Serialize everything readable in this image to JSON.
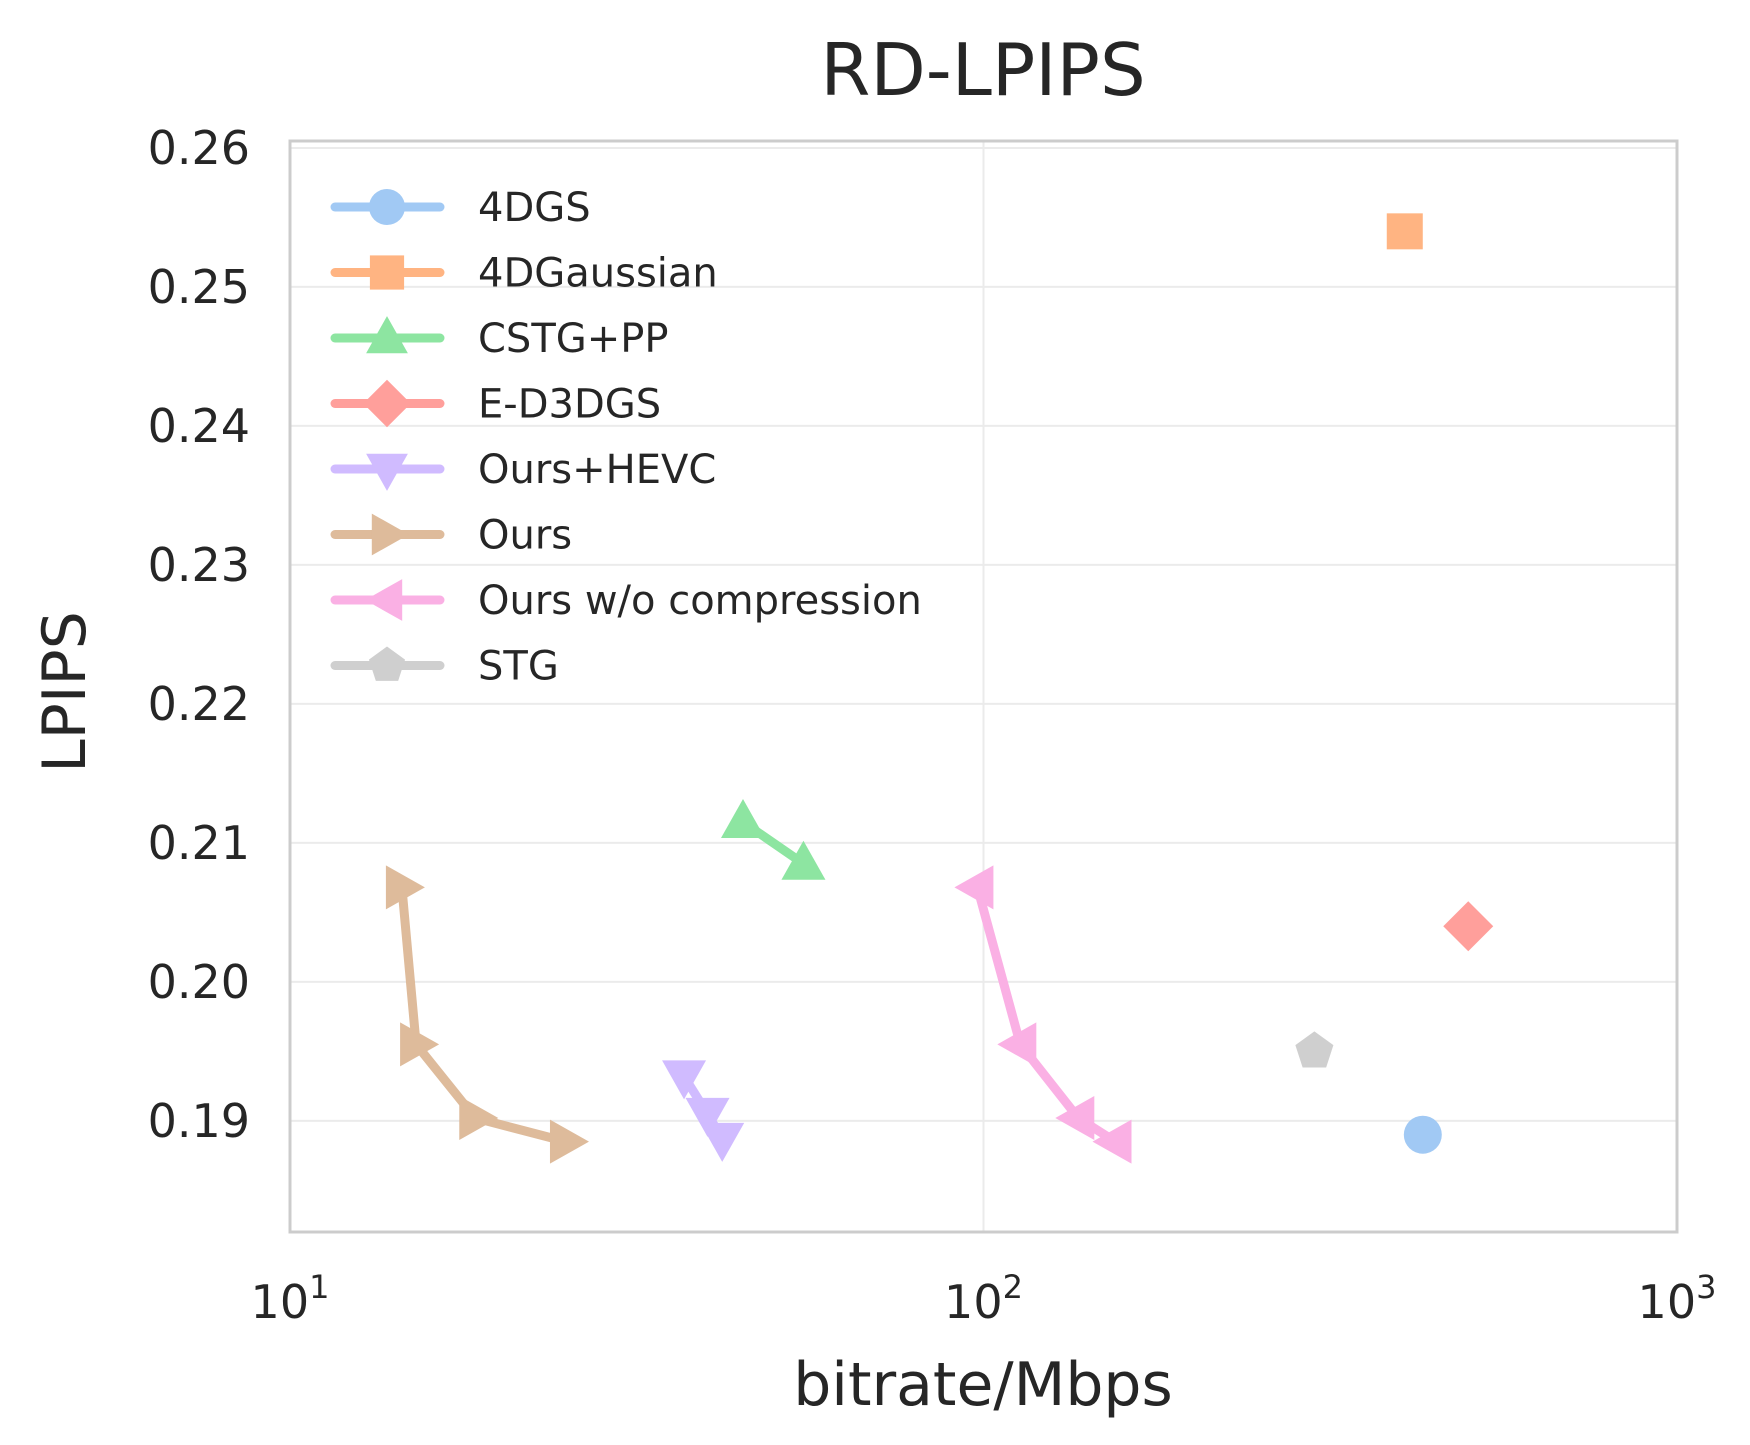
{
  "chart_data": {
    "type": "line",
    "title": "RD-LPIPS",
    "xlabel": "bitrate/Mbps",
    "ylabel": "LPIPS",
    "x_scale": "log",
    "xlim": [
      10,
      1000
    ],
    "ylim": [
      0.182,
      0.2605
    ],
    "x_ticks": [
      {
        "value": 10,
        "base": "10",
        "exp": "1"
      },
      {
        "value": 100,
        "base": "10",
        "exp": "2"
      },
      {
        "value": 1000,
        "base": "10",
        "exp": "3"
      }
    ],
    "y_ticks": [
      0.19,
      0.2,
      0.21,
      0.22,
      0.23,
      0.24,
      0.25,
      0.26
    ],
    "y_tick_labels": [
      "0.19",
      "0.20",
      "0.21",
      "0.22",
      "0.23",
      "0.24",
      "0.25",
      "0.26"
    ],
    "grid": true,
    "legend_position": "top-left",
    "series": [
      {
        "name": "4DGS",
        "color": "#a1c9f4",
        "marker": "circle",
        "x": [
          430
        ],
        "y": [
          0.189
        ]
      },
      {
        "name": "4DGaussian",
        "color": "#ffb482",
        "marker": "square",
        "x": [
          405
        ],
        "y": [
          0.254
        ]
      },
      {
        "name": "CSTG+PP",
        "color": "#8de5a1",
        "marker": "triangle-up",
        "x": [
          45,
          55
        ],
        "y": [
          0.2115,
          0.2085
        ]
      },
      {
        "name": "E-D3DGS",
        "color": "#ff9f9b",
        "marker": "diamond",
        "x": [
          500
        ],
        "y": [
          0.204
        ]
      },
      {
        "name": "Ours+HEVC",
        "color": "#d0bbff",
        "marker": "triangle-down",
        "x": [
          37,
          40,
          42
        ],
        "y": [
          0.1932,
          0.1905,
          0.1887
        ]
      },
      {
        "name": "Ours",
        "color": "#debb9b",
        "marker": "triangle-right",
        "x": [
          14.5,
          15.2,
          18.5,
          25
        ],
        "y": [
          0.2068,
          0.1955,
          0.1902,
          0.1885
        ]
      },
      {
        "name": "Ours w/o compression",
        "color": "#fab0e4",
        "marker": "triangle-left",
        "x": [
          98,
          113,
          137,
          155
        ],
        "y": [
          0.2068,
          0.1955,
          0.1902,
          0.1885
        ]
      },
      {
        "name": "STG",
        "color": "#cfcfcf",
        "marker": "pentagon",
        "x": [
          300
        ],
        "y": [
          0.195
        ]
      }
    ]
  }
}
